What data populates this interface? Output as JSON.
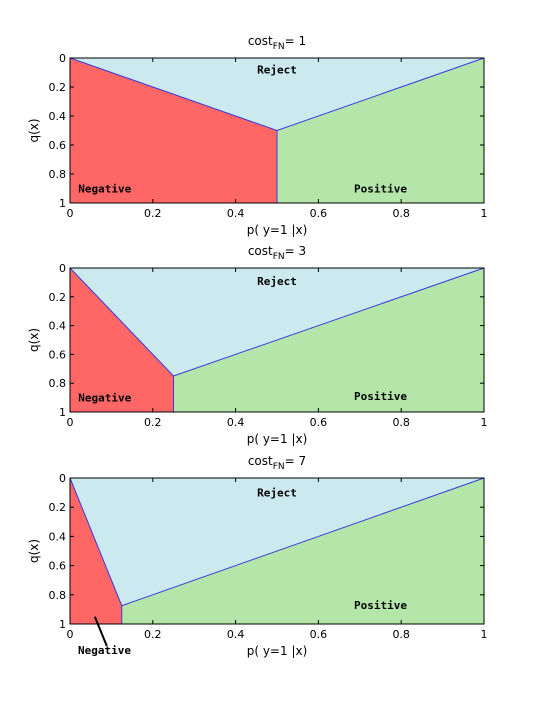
{
  "colors": {
    "negative": "#ff6666",
    "reject": "#cce9f0",
    "positive": "#b3e6a8",
    "boundary": "#3a3ae0"
  },
  "chart_data": [
    {
      "type": "area",
      "title_prefix": "cost",
      "title_subscript": "FN",
      "title_value": "= 1",
      "xlabel": "p( y=1 |x)",
      "ylabel": "q(x)",
      "xlim": [
        0,
        1
      ],
      "ylim": [
        0,
        1
      ],
      "y_inverted": true,
      "grid": false,
      "xticks": [
        "0",
        "0.2",
        "0.4",
        "0.6",
        "0.8",
        "1"
      ],
      "yticks": [
        "0",
        "0.2",
        "0.4",
        "0.6",
        "0.8",
        "1"
      ],
      "threshold": 0.5,
      "kink": [
        0.5,
        0.5
      ],
      "regions": [
        {
          "name": "Negative",
          "polygon": [
            [
              0,
              0
            ],
            [
              0.5,
              0.5
            ],
            [
              0.5,
              1
            ],
            [
              0,
              1
            ]
          ],
          "label_at": [
            0.02,
            0.9
          ]
        },
        {
          "name": "Reject",
          "polygon": [
            [
              0,
              0
            ],
            [
              1,
              0
            ],
            [
              0.5,
              0.5
            ]
          ],
          "label_at": [
            0.5,
            0.08
          ]
        },
        {
          "name": "Positive",
          "polygon": [
            [
              0.5,
              0.5
            ],
            [
              1,
              0
            ],
            [
              1,
              1
            ],
            [
              0.5,
              1
            ]
          ],
          "label_at": [
            0.75,
            0.9
          ]
        }
      ],
      "pointer": null
    },
    {
      "type": "area",
      "title_prefix": "cost",
      "title_subscript": "FN",
      "title_value": "= 3",
      "xlabel": "p( y=1 |x)",
      "ylabel": "q(x)",
      "xlim": [
        0,
        1
      ],
      "ylim": [
        0,
        1
      ],
      "y_inverted": true,
      "grid": false,
      "xticks": [
        "0",
        "0.2",
        "0.4",
        "0.6",
        "0.8",
        "1"
      ],
      "yticks": [
        "0",
        "0.2",
        "0.4",
        "0.6",
        "0.8",
        "1"
      ],
      "threshold": 0.25,
      "kink": [
        0.25,
        0.75
      ],
      "regions": [
        {
          "name": "Negative",
          "polygon": [
            [
              0,
              0
            ],
            [
              0.25,
              0.75
            ],
            [
              0.25,
              1
            ],
            [
              0,
              1
            ]
          ],
          "label_at": [
            0.02,
            0.9
          ]
        },
        {
          "name": "Reject",
          "polygon": [
            [
              0,
              0
            ],
            [
              1,
              0
            ],
            [
              0.25,
              0.75
            ]
          ],
          "label_at": [
            0.5,
            0.09
          ]
        },
        {
          "name": "Positive",
          "polygon": [
            [
              0.25,
              0.75
            ],
            [
              1,
              0
            ],
            [
              1,
              1
            ],
            [
              0.25,
              1
            ]
          ],
          "label_at": [
            0.75,
            0.89
          ]
        }
      ],
      "pointer": null
    },
    {
      "type": "area",
      "title_prefix": "cost",
      "title_subscript": "FN",
      "title_value": "= 7",
      "xlabel": "p( y=1 |x)",
      "ylabel": "q(x)",
      "xlim": [
        0,
        1
      ],
      "ylim": [
        0,
        1
      ],
      "y_inverted": true,
      "grid": false,
      "xticks": [
        "0",
        "0.2",
        "0.4",
        "0.6",
        "0.8",
        "1"
      ],
      "yticks": [
        "0",
        "0.2",
        "0.4",
        "0.6",
        "0.8",
        "1"
      ],
      "threshold": 0.125,
      "kink": [
        0.125,
        0.875
      ],
      "regions": [
        {
          "name": "Negative",
          "polygon": [
            [
              0,
              0
            ],
            [
              0.125,
              0.875
            ],
            [
              0.125,
              1
            ],
            [
              0,
              1
            ]
          ],
          "label_at": null
        },
        {
          "name": "Reject",
          "polygon": [
            [
              0,
              0
            ],
            [
              1,
              0
            ],
            [
              0.125,
              0.875
            ]
          ],
          "label_at": [
            0.5,
            0.1
          ]
        },
        {
          "name": "Positive",
          "polygon": [
            [
              0.125,
              0.875
            ],
            [
              1,
              0
            ],
            [
              1,
              1
            ],
            [
              0.125,
              1
            ]
          ],
          "label_at": [
            0.75,
            0.87
          ]
        }
      ],
      "pointer": {
        "label": "Negative",
        "points_to": [
          0.06,
          0.95
        ]
      }
    }
  ]
}
